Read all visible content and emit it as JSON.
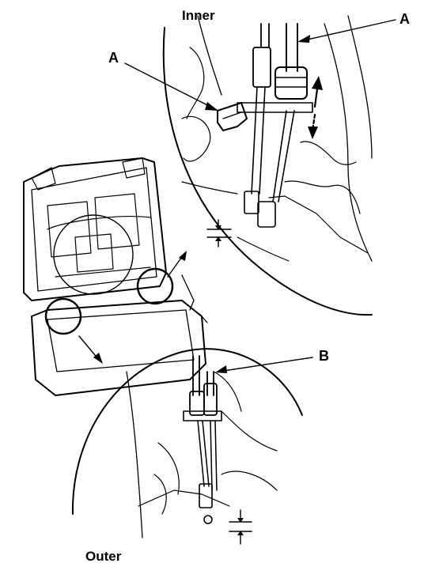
{
  "diagram": {
    "captions": {
      "inner": "Inner",
      "outer": "Outer"
    },
    "callouts": {
      "a_top": "A",
      "a_left": "A",
      "b": "B"
    },
    "colors": {
      "ink": "#000000",
      "background": "#ffffff"
    }
  }
}
